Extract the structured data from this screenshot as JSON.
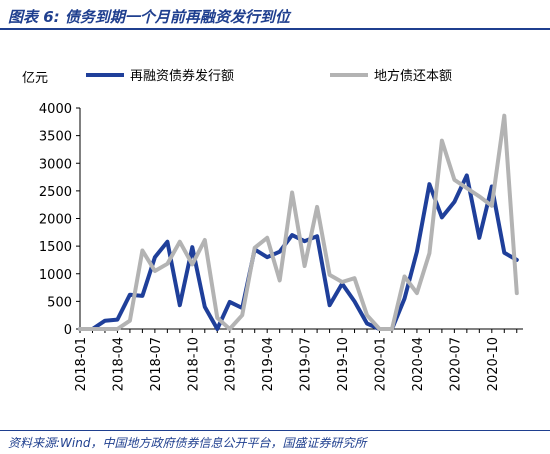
{
  "header": {
    "title": "图表 6:  债务到期一个月前再融资发行到位"
  },
  "footer": {
    "source": "资料来源:Wind，中国地方政府债券信息公开平台，国盛证券研究所"
  },
  "chart_data": {
    "type": "line",
    "y_unit": "亿元",
    "ylim": [
      0,
      4000
    ],
    "y_ticks": [
      0,
      500,
      1000,
      1500,
      2000,
      2500,
      3000,
      3500,
      4000
    ],
    "x_tick_labels": [
      "2018-01",
      "2018-04",
      "2018-07",
      "2018-10",
      "2019-01",
      "2019-04",
      "2019-07",
      "2019-10",
      "2020-01",
      "2020-04",
      "2020-07",
      "2020-10"
    ],
    "grid": false,
    "legend_position": "top",
    "categories": [
      "2018-01",
      "2018-02",
      "2018-03",
      "2018-04",
      "2018-05",
      "2018-06",
      "2018-07",
      "2018-08",
      "2018-09",
      "2018-10",
      "2018-11",
      "2018-12",
      "2019-01",
      "2019-02",
      "2019-03",
      "2019-04",
      "2019-05",
      "2019-06",
      "2019-07",
      "2019-08",
      "2019-09",
      "2019-10",
      "2019-11",
      "2019-12",
      "2020-01",
      "2020-02",
      "2020-03",
      "2020-04",
      "2020-05",
      "2020-06",
      "2020-07",
      "2020-08",
      "2020-09",
      "2020-10",
      "2020-11",
      "2020-12"
    ],
    "series": [
      {
        "name": "再融资债券发行额",
        "color": "#1f3f9a",
        "values": [
          0,
          0,
          150,
          170,
          620,
          600,
          1300,
          1580,
          430,
          1480,
          400,
          0,
          490,
          380,
          1440,
          1300,
          1400,
          1700,
          1590,
          1680,
          430,
          820,
          500,
          100,
          0,
          0,
          550,
          1400,
          2620,
          2020,
          2300,
          2780,
          1650,
          2580,
          1380,
          1250
        ]
      },
      {
        "name": "地方债还本额",
        "color": "#b3b3b3",
        "values": [
          0,
          0,
          0,
          0,
          150,
          1420,
          1050,
          1180,
          1580,
          1170,
          1610,
          200,
          0,
          250,
          1470,
          1650,
          880,
          2470,
          1140,
          2210,
          980,
          850,
          920,
          250,
          0,
          0,
          950,
          650,
          1370,
          3410,
          2700,
          2550,
          2400,
          2230,
          3860,
          650
        ]
      }
    ]
  }
}
